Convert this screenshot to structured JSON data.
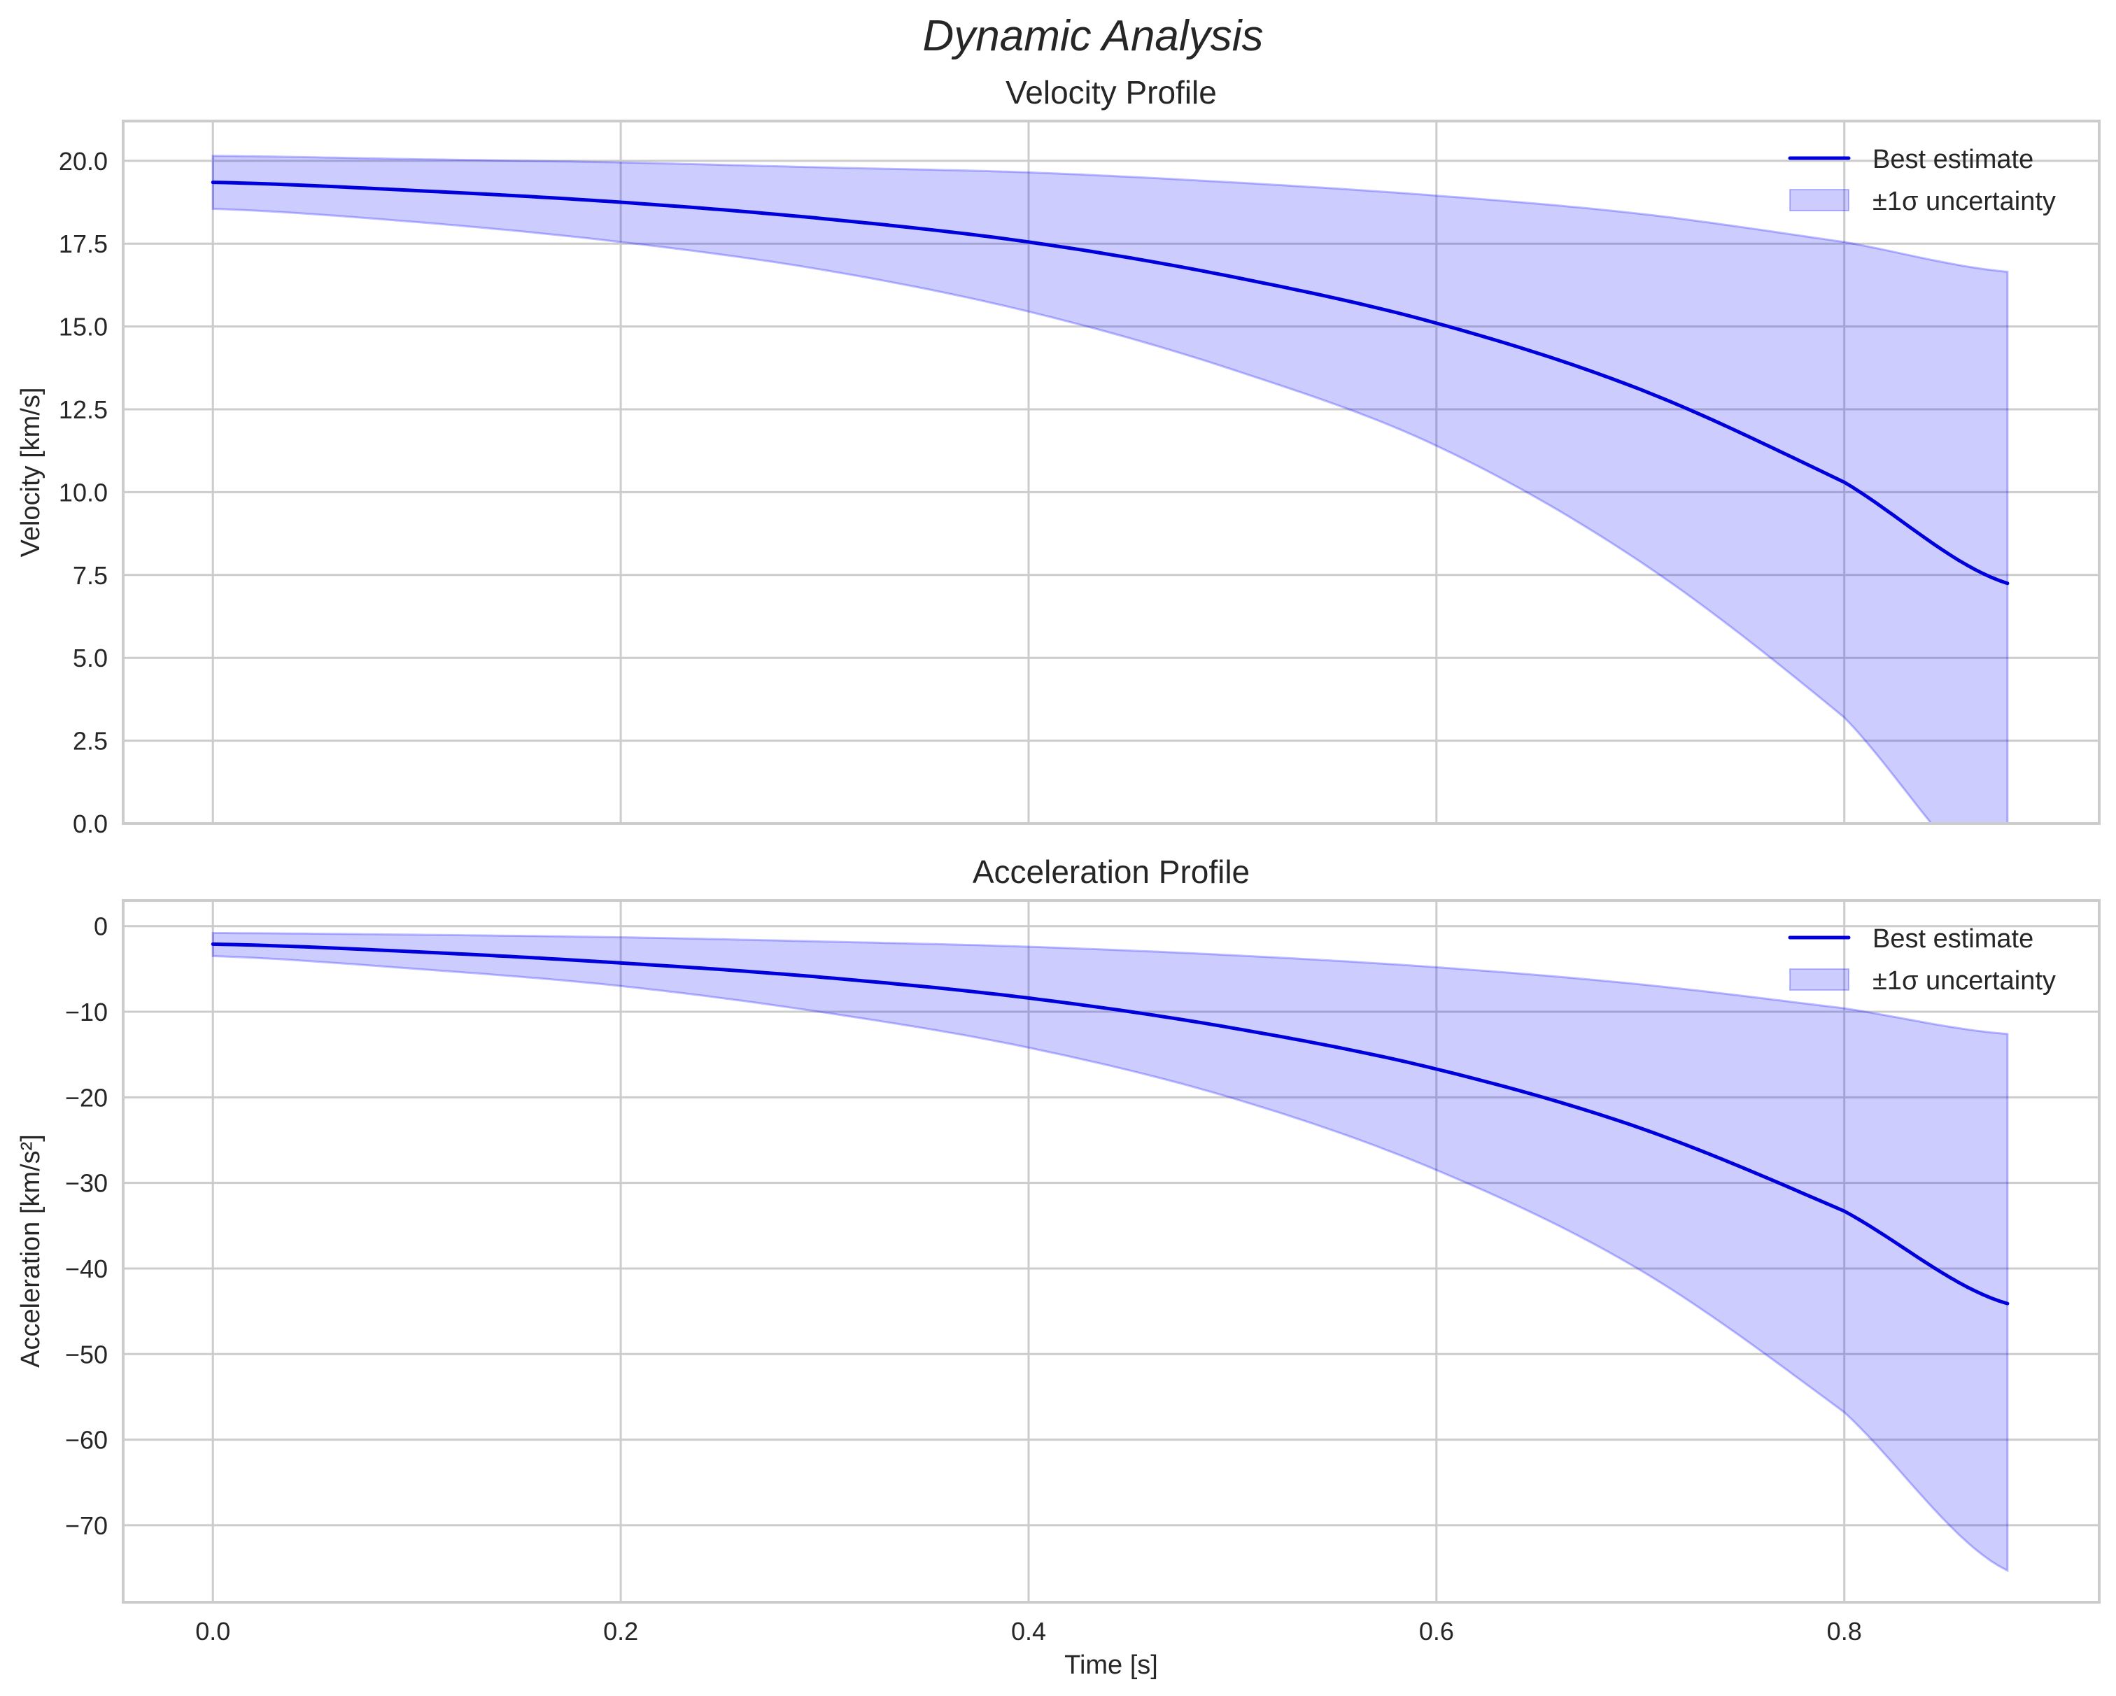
{
  "figure": {
    "suptitle": "Dynamic Analysis",
    "xlabel": "Time [s]"
  },
  "colors": {
    "line": "#0000dd",
    "band_fill": "#0000ff",
    "band_alpha": 0.2,
    "grid": "#cccccc",
    "spine": "#cccccc",
    "text": "#262626"
  },
  "legend": {
    "line_label": "Best estimate",
    "band_label": "±1σ uncertainty"
  },
  "chart_data": [
    {
      "type": "line",
      "title": "Velocity Profile",
      "xlabel": "",
      "ylabel": "Velocity [km/s]",
      "xlim": [
        -0.044,
        0.925
      ],
      "ylim": [
        0.0,
        21.2
      ],
      "xticks": [
        "0.0",
        "0.2",
        "0.4",
        "0.6",
        "0.8"
      ],
      "yticks": [
        "0.0",
        "2.5",
        "5.0",
        "7.5",
        "10.0",
        "12.5",
        "15.0",
        "17.5",
        "20.0"
      ],
      "grid": true,
      "legend_position": "upper right",
      "x": [
        0.0,
        0.1,
        0.2,
        0.3,
        0.4,
        0.5,
        0.6,
        0.7,
        0.8,
        0.88
      ],
      "series": [
        {
          "name": "Best estimate",
          "values": [
            19.35,
            19.1,
            18.75,
            18.25,
            17.55,
            16.5,
            15.1,
            13.1,
            10.3,
            7.25
          ]
        },
        {
          "name": "±1σ uncertainty (upper)",
          "values": [
            20.15,
            20.05,
            19.95,
            19.8,
            19.65,
            19.35,
            18.95,
            18.4,
            17.55,
            16.65
          ]
        },
        {
          "name": "±1σ uncertainty (lower)",
          "values": [
            18.55,
            18.15,
            17.55,
            16.7,
            15.45,
            13.7,
            11.4,
            7.9,
            3.2,
            -2.2
          ]
        }
      ]
    },
    {
      "type": "line",
      "title": "Acceleration Profile",
      "xlabel": "Time [s]",
      "ylabel": "Acceleration [km/s²]",
      "xlim": [
        -0.044,
        0.925
      ],
      "ylim": [
        -79.0,
        3.0
      ],
      "xticks": [
        "0.0",
        "0.2",
        "0.4",
        "0.6",
        "0.8"
      ],
      "yticks": [
        "0",
        "−10",
        "−20",
        "−30",
        "−40",
        "−50",
        "−60",
        "−70"
      ],
      "grid": true,
      "legend_position": "upper right",
      "x": [
        0.0,
        0.1,
        0.2,
        0.3,
        0.4,
        0.5,
        0.6,
        0.7,
        0.8,
        0.88
      ],
      "series": [
        {
          "name": "Best estimate",
          "values": [
            -2.1,
            -3.0,
            -4.3,
            -6.0,
            -8.4,
            -11.9,
            -16.7,
            -23.6,
            -33.3,
            -44.1
          ]
        },
        {
          "name": "±1σ uncertainty (upper)",
          "values": [
            -0.8,
            -1.0,
            -1.3,
            -1.8,
            -2.4,
            -3.4,
            -4.8,
            -6.8,
            -9.6,
            -12.6
          ]
        },
        {
          "name": "±1σ uncertainty (lower)",
          "values": [
            -3.5,
            -5.0,
            -7.0,
            -10.1,
            -14.2,
            -20.1,
            -28.5,
            -40.2,
            -56.8,
            -75.3
          ]
        }
      ]
    }
  ]
}
